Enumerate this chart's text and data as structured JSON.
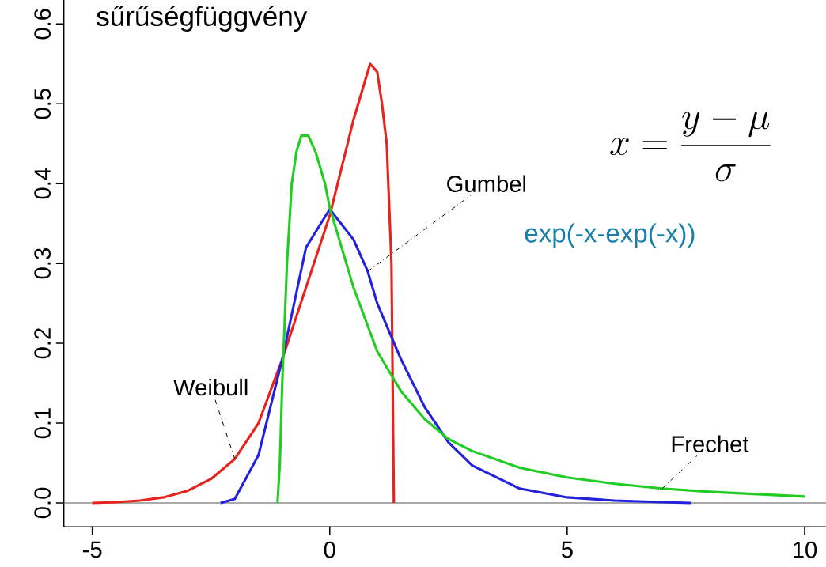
{
  "chart_data": {
    "type": "line",
    "title": "sűrűségfüggvény",
    "annotations": [
      "x=\\frac{y-\\mu}{\\sigma}",
      "exp(-x-exp(-x))"
    ],
    "xlim": [
      -5.6,
      10.45
    ],
    "ylim": [
      -0.03,
      0.63
    ],
    "xticks": [
      -5,
      0,
      5,
      10
    ],
    "yticks": [
      {
        "value": 0,
        "label": "0.0"
      },
      0.1,
      0.2,
      0.3,
      0.4,
      0.5,
      0.6
    ],
    "ref_lines": [
      {
        "axis": "y",
        "value": 0,
        "color": "#555555"
      }
    ],
    "series": [
      {
        "name": "Weibull",
        "color": "#e8221c",
        "x": [
          -5,
          -4.5,
          -4,
          -3.5,
          -3,
          -2.5,
          -2,
          -1.5,
          -1,
          -0.5,
          0,
          0.25,
          0.5,
          0.75,
          0.85,
          1.0,
          1.1,
          1.2,
          1.3,
          1.35
        ],
        "values": [
          0,
          0.001,
          0.003,
          0.007,
          0.015,
          0.03,
          0.055,
          0.1,
          0.18,
          0.27,
          0.36,
          0.42,
          0.48,
          0.53,
          0.55,
          0.54,
          0.5,
          0.45,
          0.3,
          0
        ]
      },
      {
        "name": "Gumbel",
        "color": "#2222dd",
        "x": [
          -2.3,
          -2,
          -1.5,
          -1,
          -0.5,
          0,
          0.5,
          0.8,
          1,
          1.5,
          2,
          2.5,
          3,
          4,
          5,
          6,
          7,
          7.6
        ],
        "values": [
          0,
          0.005,
          0.06,
          0.18,
          0.32,
          0.368,
          0.33,
          0.29,
          0.25,
          0.18,
          0.12,
          0.076,
          0.047,
          0.018,
          0.007,
          0.003,
          0.001,
          0
        ]
      },
      {
        "name": "Frechet",
        "color": "#22cc22",
        "x": [
          -1.1,
          -1.05,
          -1,
          -0.9,
          -0.8,
          -0.7,
          -0.6,
          -0.45,
          -0.3,
          -0.1,
          0,
          0.5,
          1,
          1.5,
          2,
          2.5,
          3,
          4,
          5,
          6,
          7,
          8,
          9,
          10
        ],
        "values": [
          0,
          0.05,
          0.15,
          0.3,
          0.4,
          0.44,
          0.46,
          0.46,
          0.44,
          0.4,
          0.37,
          0.27,
          0.19,
          0.14,
          0.105,
          0.08,
          0.065,
          0.044,
          0.032,
          0.024,
          0.018,
          0.014,
          0.011,
          0.008
        ]
      }
    ]
  }
}
